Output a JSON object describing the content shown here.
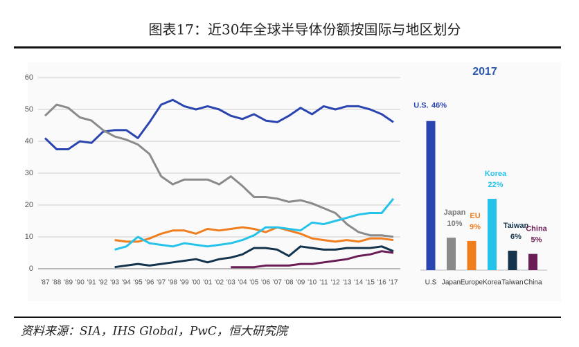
{
  "header": {
    "title": "图表17：近30年全球半导体份额按国际与地区划分"
  },
  "footer": {
    "source": "资料来源：SIA，IHS Global，PwC，恒大研究院"
  },
  "chart_data": [
    {
      "type": "line",
      "categories": [
        "'87",
        "'88",
        "'89",
        "'90",
        "'91",
        "'92",
        "'93",
        "'94",
        "'95",
        "'96",
        "'97",
        "'98",
        "'99",
        "'00",
        "'01",
        "'02",
        "'03",
        "'04",
        "'05",
        "'06",
        "'07",
        "'08",
        "'09",
        "'10",
        "'11",
        "'12",
        "'13",
        "'14",
        "'15",
        "'16",
        "'17"
      ],
      "ylim": [
        0,
        60
      ],
      "yticks": [
        0,
        10,
        20,
        30,
        40,
        50,
        60
      ],
      "grid": true,
      "series": [
        {
          "color": "#2a44b0",
          "values": [
            41,
            37.5,
            37.5,
            40,
            39.5,
            43,
            43.5,
            43.5,
            41,
            46,
            51.5,
            53,
            51,
            50,
            51,
            50,
            48,
            47,
            48.5,
            46.5,
            46,
            48,
            50.5,
            48.5,
            51,
            50,
            51,
            51,
            50,
            48.5,
            46
          ]
        },
        {
          "color": "#8a8a8a",
          "values": [
            48,
            51.5,
            50.5,
            47.5,
            46.5,
            43.5,
            41.5,
            40.5,
            39,
            36,
            29,
            26.5,
            28,
            28,
            28,
            26.5,
            29,
            26,
            22.5,
            22.5,
            22,
            21,
            21.5,
            20.5,
            19,
            17.5,
            14,
            11.5,
            10.5,
            10.5,
            10
          ]
        },
        {
          "color": "#f07d1e",
          "values": [
            null,
            null,
            null,
            null,
            null,
            null,
            9,
            8.5,
            8.5,
            9.5,
            11,
            12,
            12,
            11,
            12.5,
            12,
            12.5,
            13,
            12.5,
            11.5,
            13,
            12,
            11,
            9.5,
            9,
            8.5,
            9,
            8.5,
            9.5,
            9.5,
            9
          ]
        },
        {
          "color": "#25c3ea",
          "values": [
            null,
            null,
            null,
            null,
            null,
            null,
            6,
            7,
            10,
            8,
            7.5,
            7,
            8,
            7.5,
            7,
            7.5,
            8,
            9,
            10.5,
            13,
            13,
            12.5,
            12,
            14.5,
            14,
            15,
            16,
            17,
            17.5,
            17.5,
            22
          ]
        },
        {
          "color": "#14344e",
          "values": [
            null,
            null,
            null,
            null,
            null,
            null,
            0.5,
            1,
            1.5,
            1,
            1.5,
            2,
            2.5,
            3,
            2,
            3,
            3.5,
            4.5,
            6.5,
            6.5,
            6,
            4,
            7,
            6.5,
            6,
            6,
            6.5,
            6.5,
            6.5,
            7,
            5.5
          ]
        },
        {
          "color": "#6a1e55",
          "values": [
            null,
            null,
            null,
            null,
            null,
            null,
            null,
            null,
            null,
            null,
            null,
            null,
            null,
            null,
            null,
            null,
            0.5,
            0.5,
            0.5,
            1,
            1,
            1,
            1.5,
            1.5,
            2,
            2.5,
            3,
            4,
            4.5,
            5.5,
            5
          ]
        }
      ]
    },
    {
      "type": "bar",
      "title": "2017",
      "categories": [
        "U.S",
        "Japan",
        "Europe",
        "Korea",
        "Taiwan",
        "China"
      ],
      "label_names": [
        "U.S.",
        "Japan",
        "EU",
        "Korea",
        "Taiwan",
        "China"
      ],
      "values": [
        46,
        10,
        9,
        22,
        6,
        5
      ],
      "value_labels": [
        "46%",
        "10%",
        "9%",
        "22%",
        "6%",
        "5%"
      ],
      "colors": [
        "#2a44b0",
        "#8a8a8a",
        "#f07d1e",
        "#25c3ea",
        "#14344e",
        "#6a1e55"
      ],
      "ylim": [
        0,
        50
      ]
    }
  ]
}
